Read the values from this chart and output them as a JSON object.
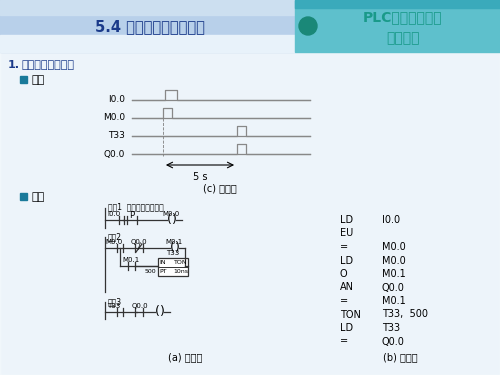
{
  "title_left": "5.4 简单的典型电路编程",
  "title_right_line1": "PLC的基本指令及",
  "title_right_line2": "程序设计",
  "section_num": "1.",
  "section_title": "延时脉冲产生电路",
  "subsection1": "题目",
  "subsection2": "程序",
  "timing_labels": [
    "I0.0",
    "M0.0",
    "T33",
    "Q0.0"
  ],
  "timing_annotation": "5 s",
  "timing_caption": "(c) 时序图",
  "ladder_caption": "(a) 梯形图",
  "mnemonic_caption": "(b) 语句表",
  "network1_label": "网络1  延时脉冲产生电路",
  "network2_label": "网络2",
  "network3_label": "网络3",
  "mnemonic_lines": [
    [
      "LD",
      "I0.0"
    ],
    [
      "EU",
      ""
    ],
    [
      "=",
      "M0.0"
    ],
    [
      "LD",
      "M0.0"
    ],
    [
      "O",
      "M0.1"
    ],
    [
      "AN",
      "Q0.0"
    ],
    [
      "=",
      "M0.1"
    ],
    [
      "TON",
      "T33,  500"
    ],
    [
      "LD",
      "T33"
    ],
    [
      "=",
      "Q0.0"
    ]
  ],
  "bg_color": "#d8e8f4",
  "header_left_bg": "#b8d0ea",
  "header_right_bg": "#5ec0cc",
  "title_color": "#1a3a8a",
  "teal_color": "#1a9a8a",
  "section_color": "#1a3a8a",
  "bullet_color": "#1a7a9a",
  "timing_line_color": "#888888",
  "ladder_line_color": "#333333"
}
